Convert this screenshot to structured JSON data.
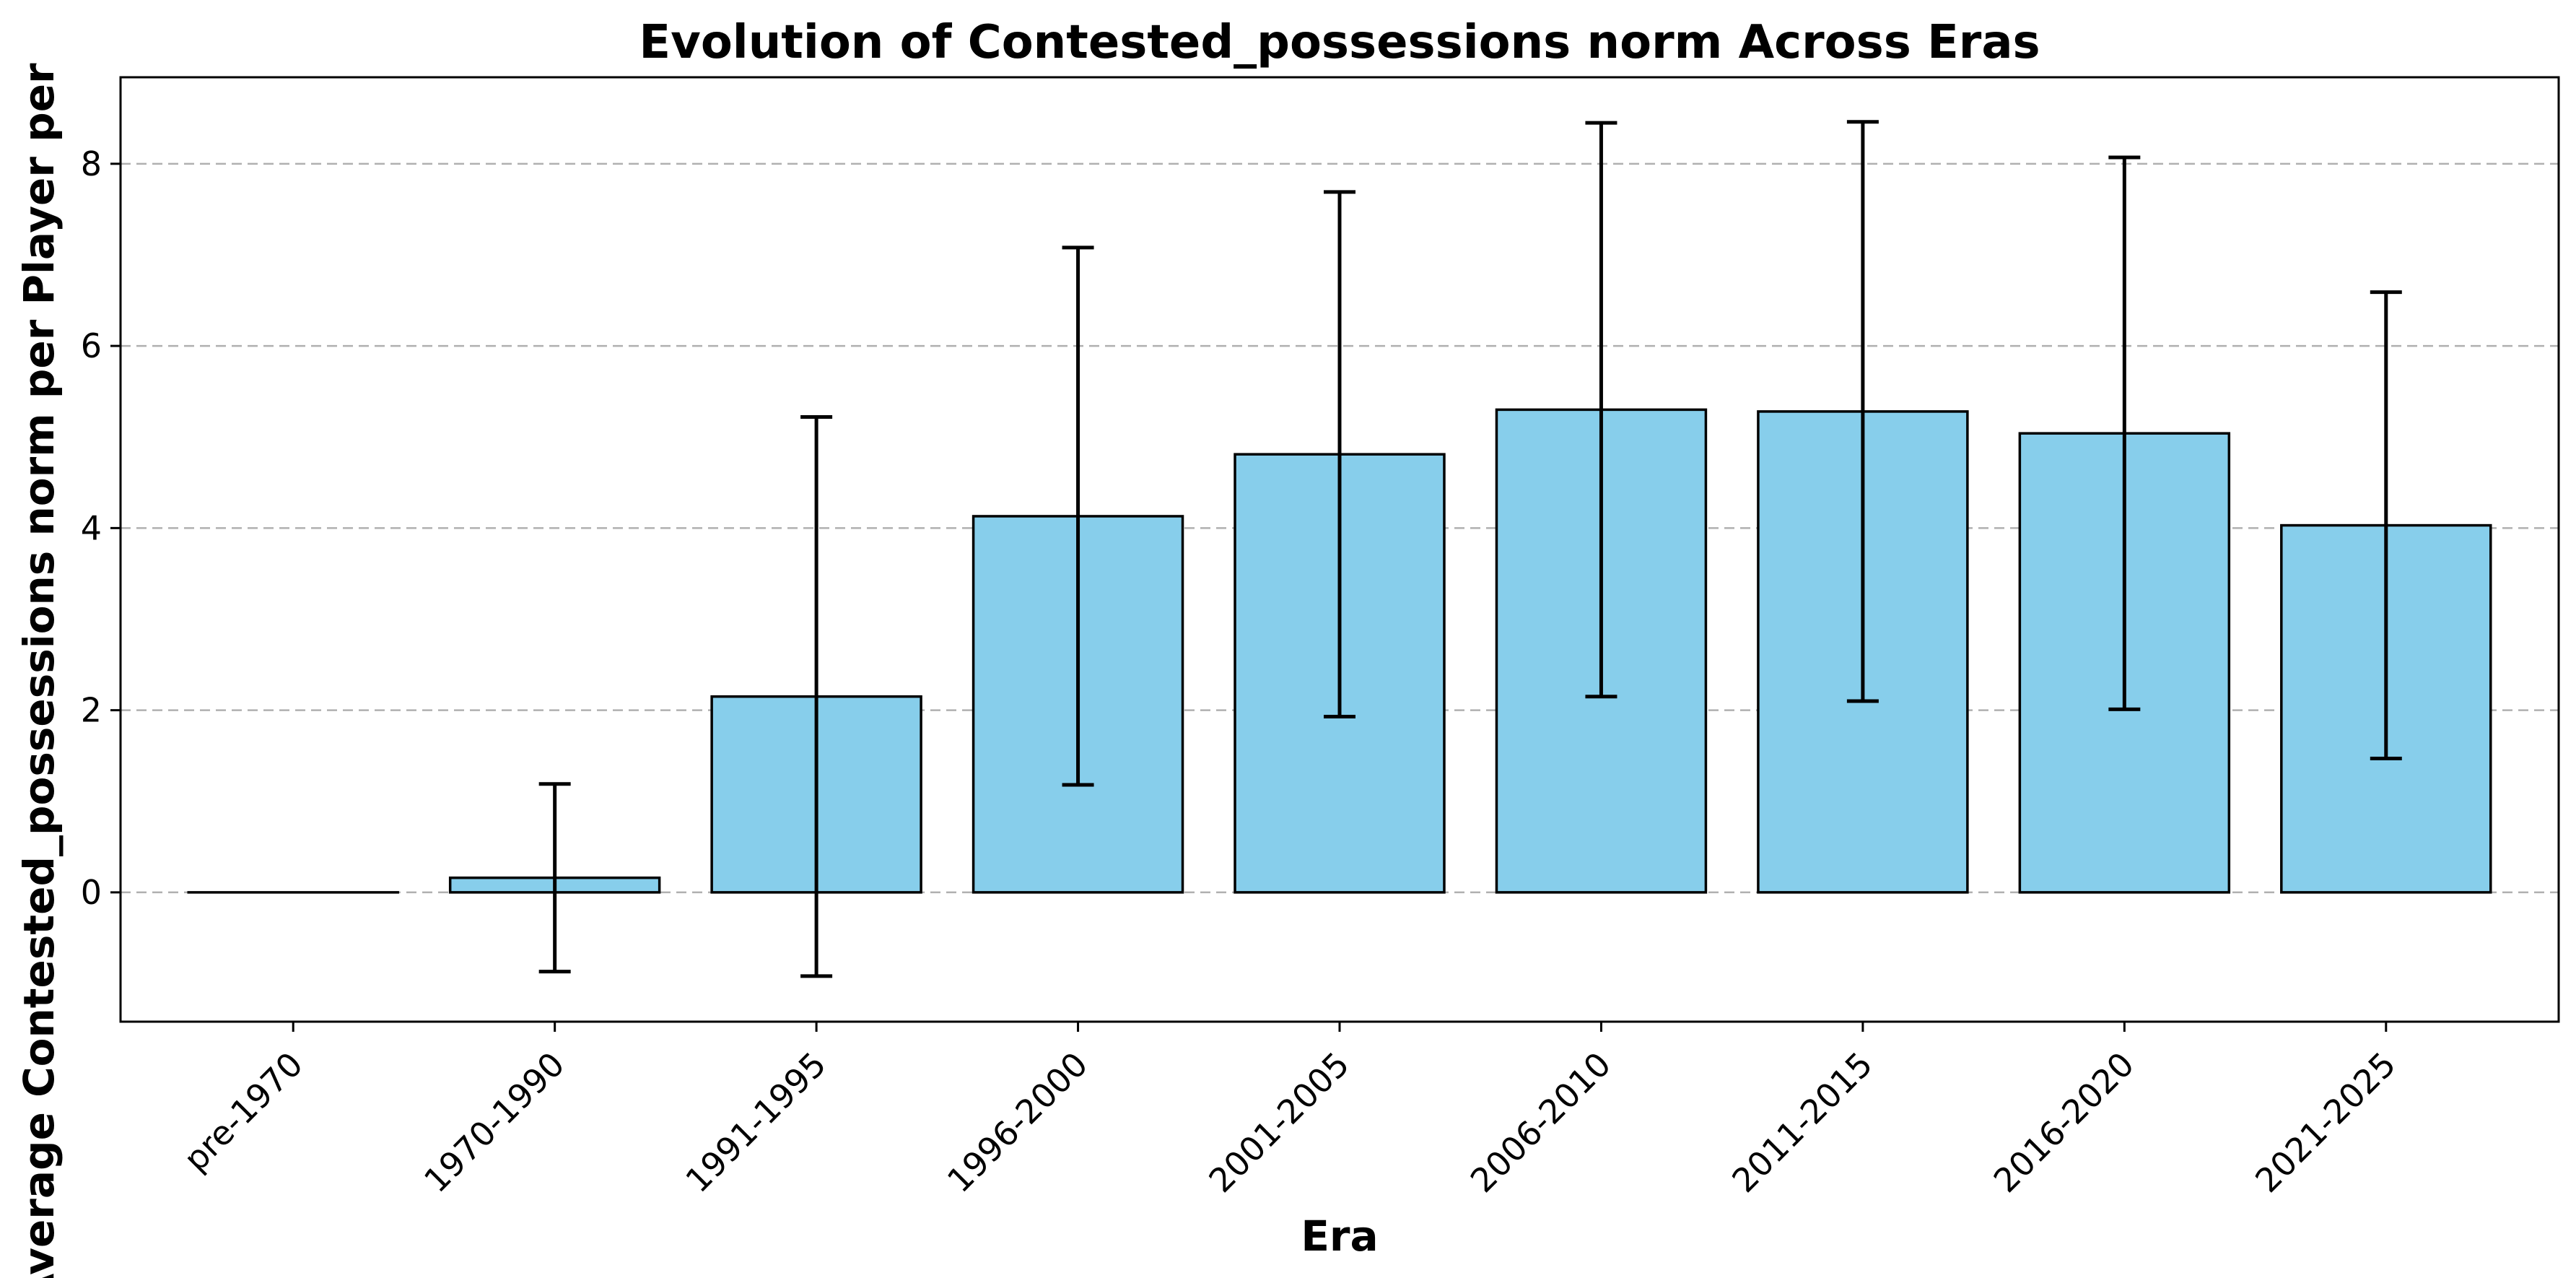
{
  "chart_data": {
    "type": "bar",
    "title": "Evolution of Contested_possessions norm Across Eras",
    "xlabel": "Era",
    "ylabel": "Average Contested_possessions norm per Player per",
    "categories": [
      "pre-1970",
      "1970-1990",
      "1991-1995",
      "1996-2000",
      "2001-2005",
      "2006-2010",
      "2011-2015",
      "2016-2020",
      "2021-2025"
    ],
    "values": [
      0.0,
      0.16,
      2.15,
      4.13,
      4.81,
      5.3,
      5.28,
      5.04,
      4.03
    ],
    "error": [
      0.0,
      1.03,
      3.07,
      2.95,
      2.88,
      3.15,
      3.18,
      3.03,
      2.56
    ],
    "ylim": [
      -1.42,
      8.95
    ],
    "yticks": [
      0,
      2,
      4,
      6,
      8
    ],
    "grid": "y",
    "bar_color": "#87ceeb",
    "edge_color": "#000000",
    "errorbar_color": "#000000",
    "grid_color": "#b0b0b0"
  }
}
